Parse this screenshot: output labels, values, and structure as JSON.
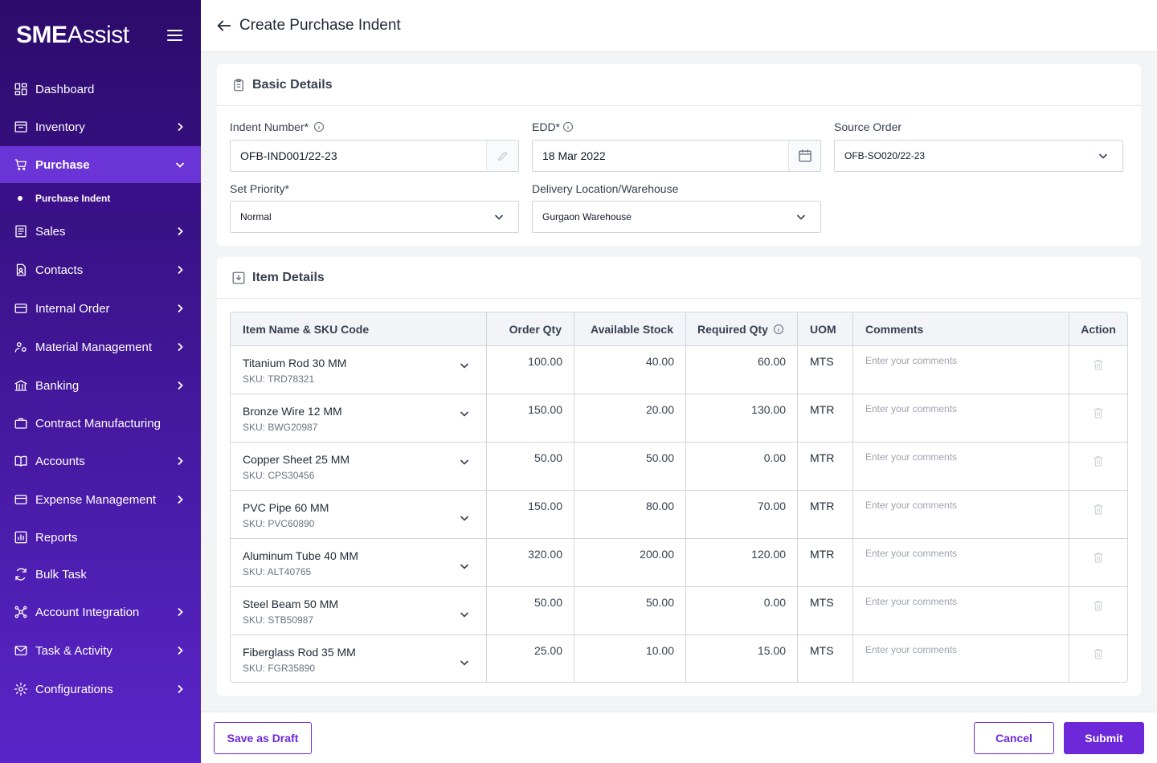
{
  "brand": {
    "bold": "SME",
    "rest": "Assist"
  },
  "sidebar": {
    "items": [
      {
        "label": "Dashboard",
        "icon": "dashboard-icon"
      },
      {
        "label": "Inventory",
        "icon": "inventory-icon"
      },
      {
        "label": "Purchase",
        "icon": "cart-icon",
        "active": true
      },
      {
        "label": "Sales",
        "icon": "sales-icon"
      },
      {
        "label": "Contacts",
        "icon": "contacts-icon"
      },
      {
        "label": "Internal Order",
        "icon": "internal-order-icon"
      },
      {
        "label": "Material Management",
        "icon": "material-icon"
      },
      {
        "label": "Banking",
        "icon": "bank-icon"
      },
      {
        "label": "Contract Manufacturing",
        "icon": "briefcase-icon"
      },
      {
        "label": "Accounts",
        "icon": "book-icon"
      },
      {
        "label": "Expense Management",
        "icon": "wallet-icon"
      },
      {
        "label": "Reports",
        "icon": "reports-icon"
      },
      {
        "label": "Bulk Task",
        "icon": "sync-icon"
      },
      {
        "label": "Account Integration",
        "icon": "integration-icon"
      },
      {
        "label": "Task & Activity",
        "icon": "task-icon"
      },
      {
        "label": "Configurations",
        "icon": "config-icon"
      }
    ],
    "sub_item": "Purchase Indent"
  },
  "header": {
    "title": "Create Purchase Indent"
  },
  "basic": {
    "title": "Basic Details",
    "indent_label": "Indent Number*",
    "indent_value": "OFB-IND001/22-23",
    "edd_label": "EDD*",
    "edd_value": "18 Mar 2022",
    "source_label": "Source Order",
    "source_value": "OFB-SO020/22-23",
    "priority_label": "Set Priority*",
    "priority_value": "Normal",
    "location_label": "Delivery Location/Warehouse",
    "location_value": "Gurgaon Warehouse"
  },
  "items": {
    "title": "Item Details",
    "headers": {
      "name": "Item Name & SKU Code",
      "order_qty": "Order Qty",
      "available": "Available Stock",
      "required": "Required Qty",
      "uom": "UOM",
      "comments": "Comments",
      "action": "Action"
    },
    "comment_placeholder": "Enter your comments",
    "rows": [
      {
        "name": "Titanium Rod 30 MM",
        "sku": "SKU: TRD78321",
        "order_qty": "100.00",
        "available": "40.00",
        "required": "60.00",
        "uom": "MTS"
      },
      {
        "name": "Bronze Wire 12 MM",
        "sku": "SKU: BWG20987",
        "order_qty": "150.00",
        "available": "20.00",
        "required": "130.00",
        "uom": "MTR"
      },
      {
        "name": "Copper Sheet 25 MM",
        "sku": "SKU: CPS30456",
        "order_qty": "50.00",
        "available": "50.00",
        "required": "0.00",
        "uom": "MTR"
      },
      {
        "name": "PVC Pipe 60 MM",
        "sku": "SKU: PVC60890",
        "order_qty": "150.00",
        "available": "80.00",
        "required": "70.00",
        "uom": "MTR"
      },
      {
        "name": "Aluminum Tube 40 MM",
        "sku": "SKU: ALT40765",
        "order_qty": "320.00",
        "available": "200.00",
        "required": "120.00",
        "uom": "MTR"
      },
      {
        "name": "Steel Beam 50 MM",
        "sku": "SKU: STB50987",
        "order_qty": "50.00",
        "available": "50.00",
        "required": "0.00",
        "uom": "MTS"
      },
      {
        "name": "Fiberglass Rod 35 MM",
        "sku": "SKU: FGR35890",
        "order_qty": "25.00",
        "available": "10.00",
        "required": "15.00",
        "uom": "MTS"
      }
    ]
  },
  "footer": {
    "draft": "Save as Draft",
    "cancel": "Cancel",
    "submit": "Submit"
  },
  "colors": {
    "accent": "#6d28d9",
    "sidebar_top": "#2c0b6b",
    "sidebar_active": "#6b34d6"
  }
}
